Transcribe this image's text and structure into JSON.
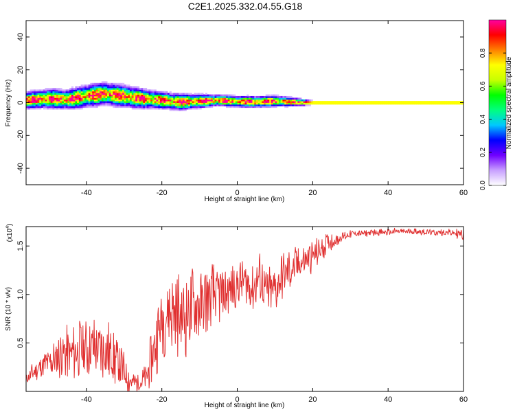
{
  "figure_title": "C2E1.2025.332.04.55.G18",
  "chart_data": [
    {
      "type": "heatmap",
      "title": "C2E1.2025.332.04.55.G18",
      "xlabel": "Height of straight line (km)",
      "ylabel": "Frequency (Hz)",
      "xlim": [
        -56,
        60
      ],
      "ylim": [
        -50,
        50
      ],
      "xticks": [
        -40,
        -20,
        0,
        20,
        40,
        60
      ],
      "yticks": [
        40,
        20,
        0,
        -20,
        -40
      ],
      "colorbar": {
        "label": "Normalized spectral amplitude",
        "range": [
          0,
          1
        ],
        "ticks": [
          "0.0",
          "0.2",
          "0.4",
          "0.6",
          "0.8"
        ],
        "colors": [
          "#ffffff",
          "#c8a0ff",
          "#7000ff",
          "#0000ff",
          "#00c8ff",
          "#00ff80",
          "#00ff00",
          "#c8ff00",
          "#ffff00",
          "#ff8000",
          "#ff0000",
          "#ff00a0"
        ]
      },
      "ridge": {
        "x": [
          -56,
          -50,
          -45,
          -40,
          -35,
          -30,
          -25,
          -20,
          -15,
          -10,
          -5,
          0,
          5,
          10,
          15,
          20,
          30,
          40,
          50,
          60
        ],
        "frequency": [
          1.5,
          2.5,
          2,
          4,
          5.5,
          4,
          2.5,
          1.5,
          0.5,
          1,
          1.5,
          0.8,
          0.5,
          1,
          0.5,
          0,
          0,
          0,
          0,
          0
        ],
        "spread": [
          3,
          3.5,
          3.5,
          4,
          4,
          4,
          3.5,
          3,
          3,
          2.5,
          2,
          2,
          2,
          2,
          1.5,
          1,
          1,
          1,
          1,
          1
        ]
      }
    },
    {
      "type": "line",
      "xlabel": "Height of straight line (km)",
      "ylabel": "SNR (10 * v/v)",
      "scale_label_base": "(x10",
      "scale_label_exp": "4",
      "scale_label_end": ")",
      "xlim": [
        -56,
        60
      ],
      "ylim": [
        0,
        1.7
      ],
      "xticks": [
        -40,
        -20,
        0,
        20,
        40,
        60
      ],
      "yticks": [
        "0.5",
        "1.0",
        "1.5"
      ],
      "series": [
        {
          "name": "SNR",
          "color": "#e03030",
          "x": [
            -56,
            -54,
            -52,
            -50,
            -48,
            -46,
            -44,
            -42,
            -40,
            -38,
            -36,
            -34,
            -32,
            -30,
            -28,
            -26,
            -24,
            -22,
            -20,
            -18,
            -16,
            -14,
            -12,
            -10,
            -8,
            -6,
            -4,
            -2,
            0,
            2,
            4,
            6,
            8,
            10,
            12,
            14,
            16,
            18,
            20,
            22,
            24,
            26,
            28,
            30,
            32,
            34,
            36,
            38,
            40,
            42,
            44,
            46,
            48,
            50,
            52,
            54,
            56,
            58,
            60
          ],
          "y": [
            0.12,
            0.2,
            0.25,
            0.3,
            0.35,
            0.4,
            0.38,
            0.42,
            0.45,
            0.45,
            0.42,
            0.4,
            0.3,
            0.2,
            0.1,
            0.08,
            0.15,
            0.45,
            0.75,
            0.85,
            0.8,
            0.78,
            0.85,
            0.9,
            0.95,
            1.0,
            1.0,
            1.05,
            1.1,
            1.15,
            1.05,
            1.2,
            1.0,
            1.05,
            1.2,
            1.25,
            1.3,
            1.35,
            1.4,
            1.45,
            1.55,
            1.55,
            1.6,
            1.62,
            1.63,
            1.63,
            1.64,
            1.64,
            1.64,
            1.65,
            1.65,
            1.65,
            1.65,
            1.64,
            1.64,
            1.64,
            1.64,
            1.63,
            1.62
          ],
          "noise": [
            0.05,
            0.1,
            0.12,
            0.15,
            0.2,
            0.25,
            0.25,
            0.28,
            0.3,
            0.3,
            0.3,
            0.3,
            0.25,
            0.2,
            0.12,
            0.08,
            0.15,
            0.3,
            0.35,
            0.4,
            0.4,
            0.4,
            0.4,
            0.35,
            0.35,
            0.3,
            0.28,
            0.25,
            0.22,
            0.2,
            0.25,
            0.25,
            0.25,
            0.25,
            0.22,
            0.2,
            0.18,
            0.15,
            0.15,
            0.12,
            0.1,
            0.06,
            0.05,
            0.04,
            0.03,
            0.03,
            0.03,
            0.03,
            0.03,
            0.03,
            0.03,
            0.03,
            0.03,
            0.03,
            0.03,
            0.03,
            0.03,
            0.04,
            0.06
          ]
        }
      ]
    }
  ]
}
